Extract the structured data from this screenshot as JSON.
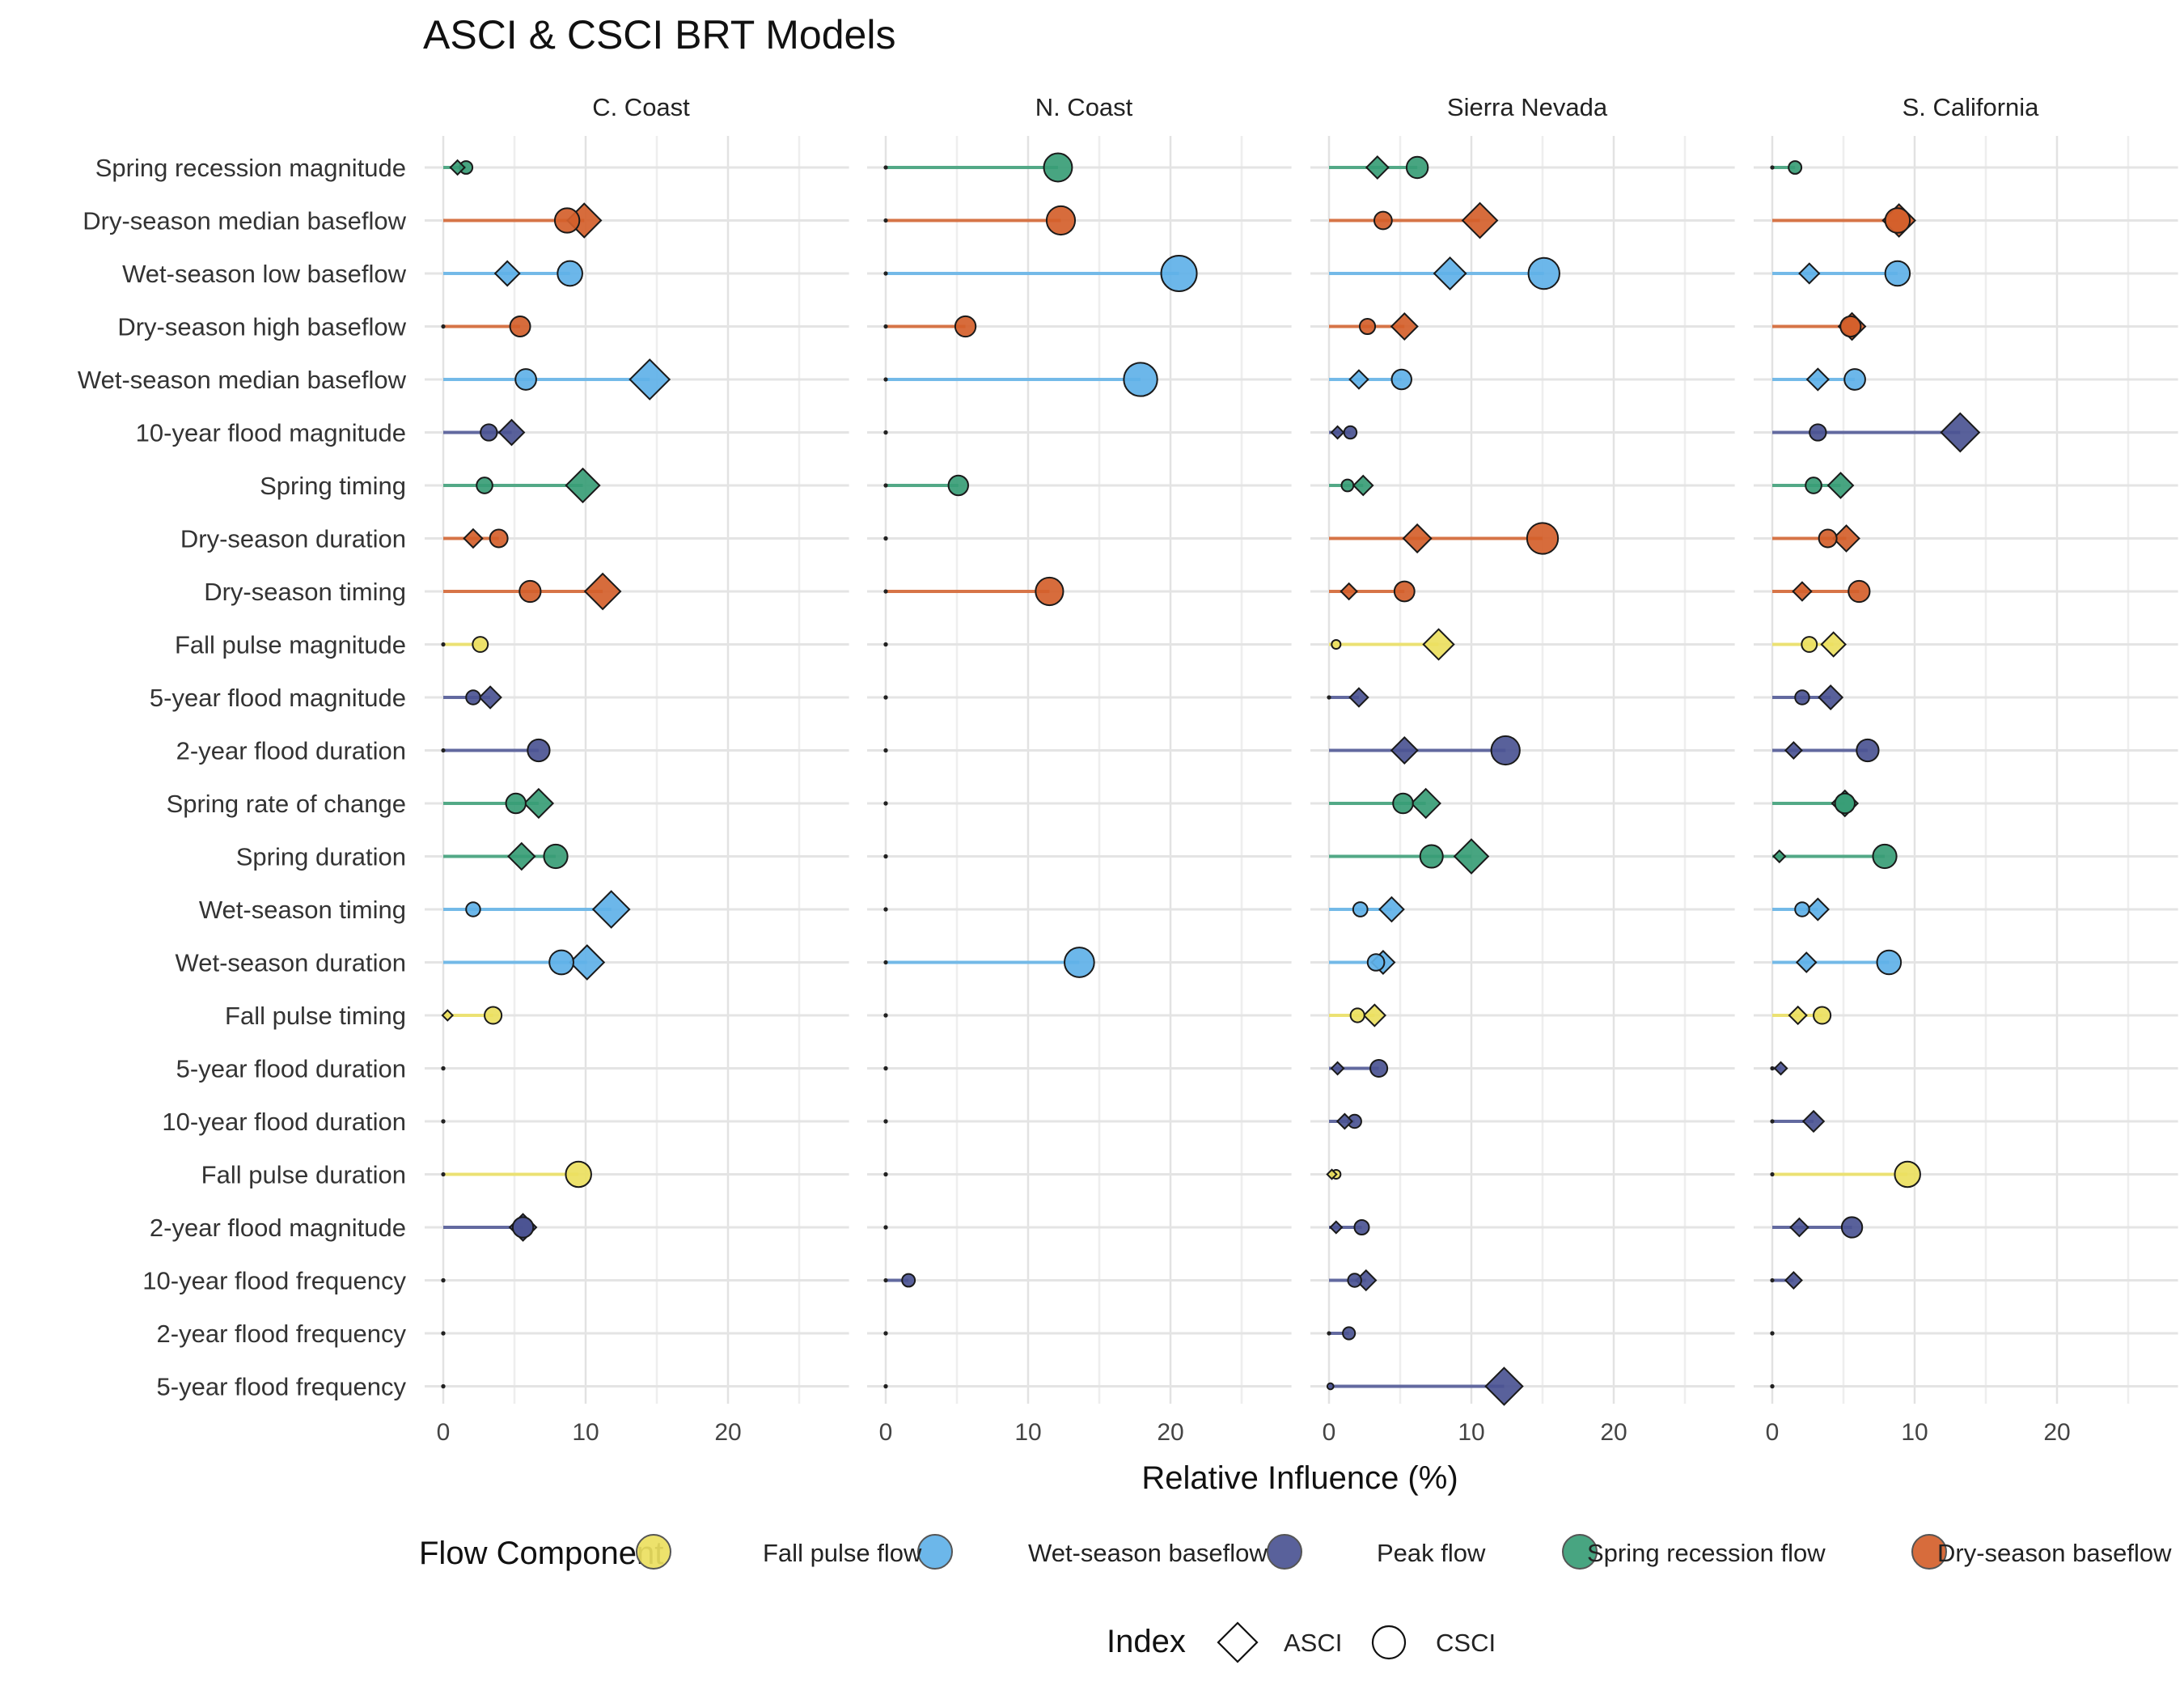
{
  "chart_data": {
    "type": "dot-lollipop",
    "title": "ASCI & CSCI BRT Models",
    "xlabel": "Relative Influence (%)",
    "xlim": [
      -1.5,
      28.5
    ],
    "xticks": [
      0,
      10,
      20
    ],
    "facets": [
      "C. Coast",
      "N. Coast",
      "Sierra Nevada",
      "S. California"
    ],
    "metrics": [
      {
        "name": "Spring recession magnitude",
        "component": "spring"
      },
      {
        "name": "Dry-season median baseflow",
        "component": "dry"
      },
      {
        "name": "Wet-season low baseflow",
        "component": "wet"
      },
      {
        "name": "Dry-season high baseflow",
        "component": "dry"
      },
      {
        "name": "Wet-season median baseflow",
        "component": "wet"
      },
      {
        "name": "10-year flood magnitude",
        "component": "peak"
      },
      {
        "name": "Spring timing",
        "component": "spring"
      },
      {
        "name": "Dry-season duration",
        "component": "dry"
      },
      {
        "name": "Dry-season timing",
        "component": "dry"
      },
      {
        "name": "Fall pulse magnitude",
        "component": "fall"
      },
      {
        "name": "5-year flood magnitude",
        "component": "peak"
      },
      {
        "name": "2-year flood duration",
        "component": "peak"
      },
      {
        "name": "Spring rate of change",
        "component": "spring"
      },
      {
        "name": "Spring duration",
        "component": "spring"
      },
      {
        "name": "Wet-season timing",
        "component": "wet"
      },
      {
        "name": "Wet-season duration",
        "component": "wet"
      },
      {
        "name": "Fall pulse timing",
        "component": "fall"
      },
      {
        "name": "5-year flood duration",
        "component": "peak"
      },
      {
        "name": "10-year flood duration",
        "component": "peak"
      },
      {
        "name": "Fall pulse duration",
        "component": "fall"
      },
      {
        "name": "2-year flood magnitude",
        "component": "peak"
      },
      {
        "name": "10-year flood frequency",
        "component": "peak"
      },
      {
        "name": "2-year flood frequency",
        "component": "peak"
      },
      {
        "name": "5-year flood frequency",
        "component": "peak"
      }
    ],
    "series": [
      {
        "name": "ASCI",
        "shape": "diamond",
        "values": [
          [
            1.0,
            9.9,
            4.5,
            0,
            14.5,
            4.8,
            9.8,
            2.1,
            11.2,
            0,
            3.3,
            0,
            6.7,
            5.5,
            11.8,
            10.1,
            0.3,
            0,
            0,
            0,
            5.6,
            0,
            0,
            0
          ],
          [
            0,
            0,
            0,
            0,
            0,
            0,
            0,
            0,
            0,
            0,
            0,
            0,
            0,
            0,
            0,
            0,
            0,
            0,
            0,
            0,
            0,
            0,
            0,
            0
          ],
          [
            3.4,
            10.6,
            8.5,
            5.3,
            2.1,
            0.6,
            2.4,
            6.2,
            1.4,
            7.7,
            2.1,
            5.3,
            6.8,
            10.0,
            4.4,
            3.8,
            3.2,
            0.6,
            1.1,
            0.2,
            0.5,
            2.6,
            0,
            12.3
          ],
          [
            0,
            8.9,
            2.6,
            5.6,
            3.2,
            13.2,
            4.8,
            5.2,
            2.1,
            4.3,
            4.1,
            1.5,
            5.1,
            0.5,
            3.2,
            2.4,
            1.8,
            0.6,
            2.9,
            0,
            1.9,
            1.5,
            0,
            0
          ]
        ]
      },
      {
        "name": "CSCI",
        "shape": "circle",
        "values": [
          [
            1.6,
            8.7,
            8.9,
            5.4,
            5.8,
            3.2,
            2.9,
            3.9,
            6.1,
            2.6,
            2.1,
            6.7,
            5.1,
            7.9,
            2.1,
            8.3,
            3.5,
            0,
            0,
            9.5,
            5.6,
            0,
            0,
            0
          ],
          [
            12.1,
            12.3,
            20.6,
            5.6,
            17.9,
            0,
            5.1,
            0,
            11.5,
            0,
            0,
            0,
            0,
            0,
            0,
            13.6,
            0,
            0,
            0,
            0,
            0,
            1.6,
            0,
            0
          ],
          [
            6.2,
            3.8,
            15.1,
            2.7,
            5.1,
            1.5,
            1.3,
            15.0,
            5.3,
            0.5,
            0,
            12.4,
            5.2,
            7.2,
            2.2,
            3.3,
            2.0,
            3.5,
            1.8,
            0.5,
            2.3,
            1.8,
            1.4,
            0.1
          ],
          [
            1.6,
            8.8,
            8.8,
            5.5,
            5.8,
            3.2,
            2.9,
            3.9,
            6.1,
            2.6,
            2.1,
            6.7,
            5.1,
            7.9,
            2.1,
            8.2,
            3.5,
            0,
            0,
            9.5,
            5.6,
            0,
            0,
            0
          ]
        ]
      }
    ],
    "components": [
      {
        "key": "fall",
        "label": "Fall pulse flow",
        "color": "#ece05f"
      },
      {
        "key": "wet",
        "label": "Wet-season baseflow",
        "color": "#5fb1e8"
      },
      {
        "key": "peak",
        "label": "Peak flow",
        "color": "#4b5493"
      },
      {
        "key": "spring",
        "label": "Spring recession flow",
        "color": "#389d76"
      },
      {
        "key": "dry",
        "label": "Dry-season baseflow",
        "color": "#d4602b"
      }
    ],
    "legend": {
      "component_title": "Flow Component",
      "index_title": "Index",
      "index_items": [
        {
          "label": "ASCI",
          "shape": "diamond"
        },
        {
          "label": "CSCI",
          "shape": "circle"
        }
      ],
      "position": "bottom"
    }
  }
}
